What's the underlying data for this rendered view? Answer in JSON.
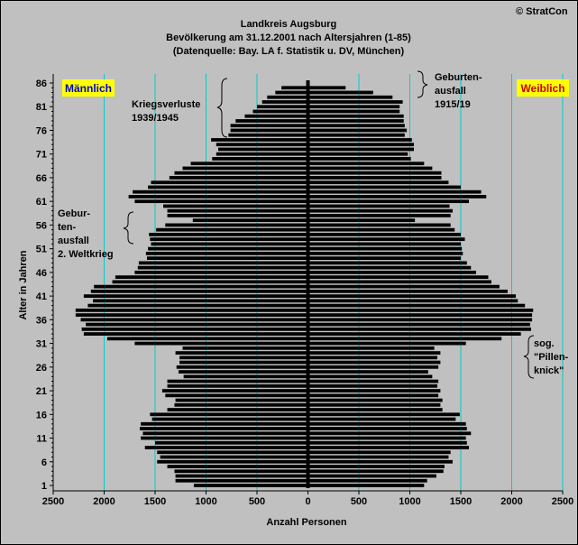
{
  "copyright": "© StratCon",
  "chart_data": {
    "type": "bar",
    "orientation": "horizontal",
    "subtype": "population-pyramid",
    "title": "Landkreis Augsburg",
    "subtitle1": "Bevölkerung am 31.12.2001 nach Altersjahren (1-85)",
    "subtitle2": "(Datenquelle: Bay. LA f. Statistik u. DV, München)",
    "xlabel": "Anzahl Personen",
    "ylabel": "Alter in Jahren",
    "xlim": [
      -2500,
      2500
    ],
    "ylim": [
      1,
      86
    ],
    "x_ticks": [
      -2500,
      -2000,
      -1500,
      -1000,
      -500,
      0,
      500,
      1000,
      1500,
      2000,
      2500
    ],
    "x_tick_labels": [
      "2500",
      "2000",
      "1500",
      "1000",
      "500",
      "0",
      "500",
      "1000",
      "1500",
      "2000",
      "2500"
    ],
    "y_ticks": [
      1,
      6,
      11,
      16,
      21,
      26,
      31,
      36,
      41,
      46,
      51,
      56,
      61,
      66,
      71,
      76,
      81,
      86
    ],
    "grid": "vertical",
    "ages": [
      1,
      2,
      3,
      4,
      5,
      6,
      7,
      8,
      9,
      10,
      11,
      12,
      13,
      14,
      15,
      16,
      17,
      18,
      19,
      20,
      21,
      22,
      23,
      24,
      25,
      26,
      27,
      28,
      29,
      30,
      31,
      32,
      33,
      34,
      35,
      36,
      37,
      38,
      39,
      40,
      41,
      42,
      43,
      44,
      45,
      46,
      47,
      48,
      49,
      50,
      51,
      52,
      53,
      54,
      55,
      56,
      57,
      58,
      59,
      60,
      61,
      62,
      63,
      64,
      65,
      66,
      67,
      68,
      69,
      70,
      71,
      72,
      73,
      74,
      75,
      76,
      77,
      78,
      79,
      80,
      81,
      82,
      83,
      84,
      85,
      86
    ],
    "series": [
      {
        "name": "Männlich",
        "color": "#000000",
        "label_color": "#0000cc",
        "values": [
          1120,
          1300,
          1300,
          1310,
          1380,
          1480,
          1450,
          1480,
          1600,
          1500,
          1640,
          1620,
          1650,
          1640,
          1530,
          1550,
          1380,
          1310,
          1300,
          1400,
          1430,
          1380,
          1380,
          1220,
          1270,
          1290,
          1260,
          1260,
          1300,
          1230,
          1700,
          1970,
          2200,
          2220,
          2180,
          2230,
          2280,
          2280,
          2160,
          2110,
          2200,
          2130,
          2100,
          1920,
          1890,
          1700,
          1670,
          1660,
          1580,
          1590,
          1570,
          1540,
          1550,
          1560,
          1490,
          1400,
          1130,
          1380,
          1380,
          1420,
          1700,
          1760,
          1720,
          1570,
          1540,
          1360,
          1310,
          1230,
          1150,
          940,
          900,
          880,
          900,
          950,
          780,
          760,
          760,
          710,
          620,
          540,
          500,
          450,
          400,
          320,
          260,
          0
        ]
      },
      {
        "name": "Weiblich",
        "color": "#000000",
        "label_color": "#cc0000",
        "values": [
          1140,
          1170,
          1260,
          1330,
          1340,
          1420,
          1380,
          1400,
          1580,
          1560,
          1550,
          1600,
          1560,
          1550,
          1450,
          1490,
          1320,
          1300,
          1320,
          1280,
          1300,
          1270,
          1280,
          1220,
          1180,
          1280,
          1300,
          1270,
          1300,
          1240,
          1550,
          1900,
          2090,
          2190,
          2180,
          2200,
          2200,
          2210,
          2130,
          2060,
          2040,
          1960,
          1880,
          1800,
          1770,
          1650,
          1600,
          1560,
          1500,
          1520,
          1510,
          1500,
          1540,
          1500,
          1440,
          1400,
          1050,
          1400,
          1420,
          1390,
          1580,
          1750,
          1700,
          1500,
          1380,
          1310,
          1310,
          1220,
          1140,
          1010,
          980,
          1040,
          1040,
          1020,
          950,
          970,
          950,
          940,
          940,
          900,
          900,
          930,
          830,
          640,
          370,
          0
        ]
      }
    ],
    "annotations": [
      {
        "id": "kriegsverluste",
        "lines": [
          "Kriegsverluste",
          "1939/1945"
        ]
      },
      {
        "id": "geburtenausfall-1915",
        "lines": [
          "Geburten-",
          "ausfall",
          "1915/19"
        ]
      },
      {
        "id": "geburtenausfall-ww2",
        "lines": [
          "Gebur-",
          "ten-",
          "ausfall",
          "2. Weltkrieg"
        ]
      },
      {
        "id": "pillenknick",
        "lines": [
          "sog.",
          "\"Pillen-",
          "knick\""
        ]
      }
    ]
  }
}
